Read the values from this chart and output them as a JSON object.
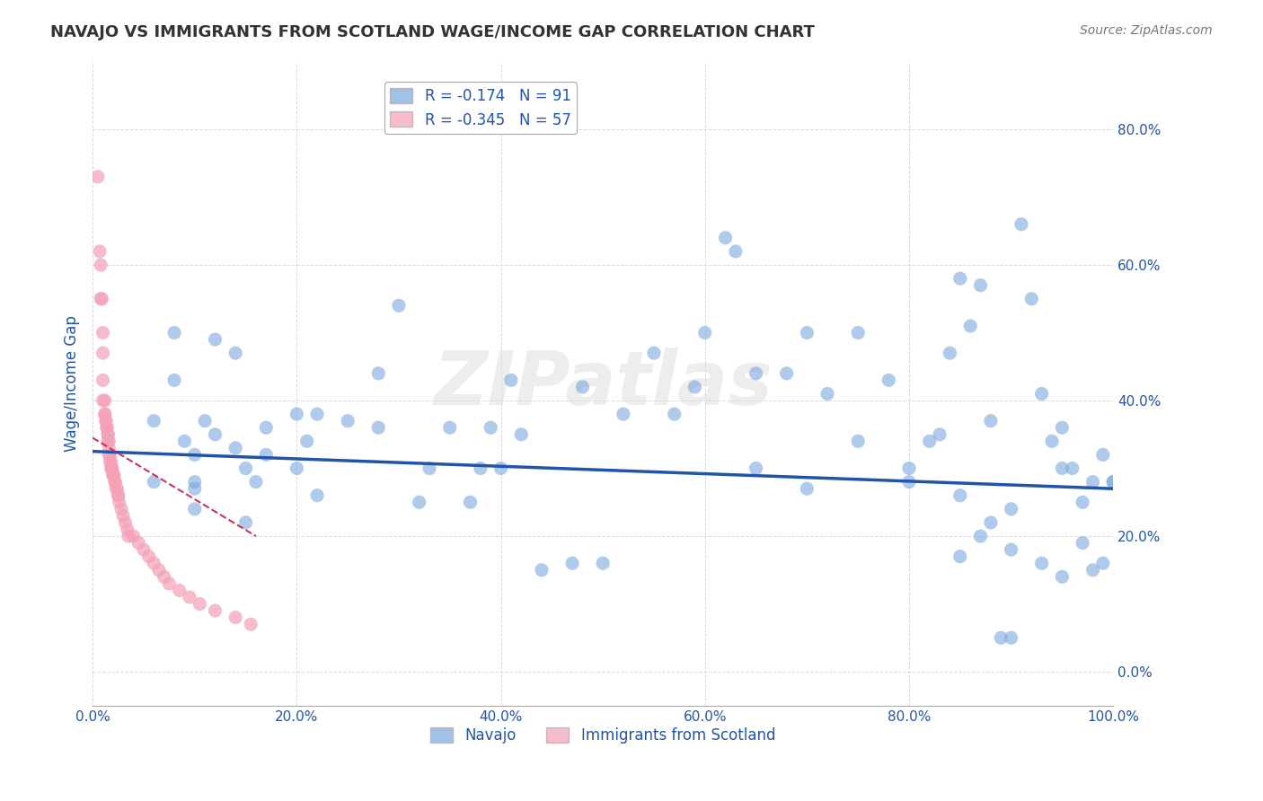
{
  "title": "NAVAJO VS IMMIGRANTS FROM SCOTLAND WAGE/INCOME GAP CORRELATION CHART",
  "source": "Source: ZipAtlas.com",
  "xlabel": "",
  "ylabel": "Wage/Income Gap",
  "watermark": "ZIPatlas",
  "legend_blue_r": "-0.174",
  "legend_blue_n": "91",
  "legend_pink_r": "-0.345",
  "legend_pink_n": "57",
  "legend_blue_label": "Navajo",
  "legend_pink_label": "Immigrants from Scotland",
  "xlim": [
    0.0,
    1.0
  ],
  "ylim": [
    -0.05,
    0.9
  ],
  "xticks": [
    0.0,
    0.2,
    0.4,
    0.6,
    0.8,
    1.0
  ],
  "yticks": [
    0.0,
    0.2,
    0.4,
    0.6,
    0.8
  ],
  "ytick_labels": [
    "0.0%",
    "20.0%",
    "40.0%",
    "60.0%",
    "80.0%"
  ],
  "xtick_labels": [
    "0.0%",
    "20.0%",
    "40.0%",
    "60.0%",
    "80.0%",
    "100.0%"
  ],
  "blue_x": [
    0.06,
    0.06,
    0.08,
    0.08,
    0.09,
    0.1,
    0.1,
    0.1,
    0.1,
    0.11,
    0.12,
    0.12,
    0.14,
    0.14,
    0.15,
    0.15,
    0.16,
    0.17,
    0.17,
    0.2,
    0.2,
    0.21,
    0.22,
    0.22,
    0.25,
    0.28,
    0.28,
    0.3,
    0.32,
    0.33,
    0.35,
    0.37,
    0.38,
    0.39,
    0.4,
    0.41,
    0.42,
    0.44,
    0.47,
    0.48,
    0.5,
    0.52,
    0.55,
    0.57,
    0.59,
    0.6,
    0.62,
    0.63,
    0.65,
    0.68,
    0.7,
    0.72,
    0.75,
    0.78,
    0.8,
    0.82,
    0.83,
    0.84,
    0.85,
    0.86,
    0.87,
    0.88,
    0.89,
    0.9,
    0.91,
    0.92,
    0.93,
    0.94,
    0.95,
    0.96,
    0.97,
    0.98,
    0.99,
    1.0,
    0.65,
    0.7,
    0.75,
    0.8,
    0.85,
    0.9,
    0.95,
    0.85,
    0.87,
    0.88,
    0.9,
    0.93,
    0.95,
    0.97,
    0.98,
    0.99,
    1.0
  ],
  "blue_y": [
    0.37,
    0.28,
    0.5,
    0.43,
    0.34,
    0.28,
    0.32,
    0.27,
    0.24,
    0.37,
    0.49,
    0.35,
    0.47,
    0.33,
    0.3,
    0.22,
    0.28,
    0.36,
    0.32,
    0.38,
    0.3,
    0.34,
    0.38,
    0.26,
    0.37,
    0.44,
    0.36,
    0.54,
    0.25,
    0.3,
    0.36,
    0.25,
    0.3,
    0.36,
    0.3,
    0.43,
    0.35,
    0.15,
    0.16,
    0.42,
    0.16,
    0.38,
    0.47,
    0.38,
    0.42,
    0.5,
    0.64,
    0.62,
    0.44,
    0.44,
    0.5,
    0.41,
    0.5,
    0.43,
    0.3,
    0.34,
    0.35,
    0.47,
    0.58,
    0.51,
    0.57,
    0.37,
    0.05,
    0.05,
    0.66,
    0.55,
    0.41,
    0.34,
    0.36,
    0.3,
    0.25,
    0.28,
    0.32,
    0.28,
    0.3,
    0.27,
    0.34,
    0.28,
    0.26,
    0.24,
    0.3,
    0.17,
    0.2,
    0.22,
    0.18,
    0.16,
    0.14,
    0.19,
    0.15,
    0.16,
    0.28
  ],
  "pink_x": [
    0.005,
    0.007,
    0.008,
    0.008,
    0.009,
    0.01,
    0.01,
    0.01,
    0.01,
    0.012,
    0.012,
    0.012,
    0.013,
    0.013,
    0.014,
    0.014,
    0.015,
    0.015,
    0.015,
    0.016,
    0.016,
    0.016,
    0.017,
    0.017,
    0.018,
    0.018,
    0.019,
    0.019,
    0.02,
    0.02,
    0.021,
    0.022,
    0.022,
    0.023,
    0.024,
    0.025,
    0.025,
    0.026,
    0.028,
    0.03,
    0.032,
    0.034,
    0.035,
    0.04,
    0.045,
    0.05,
    0.055,
    0.06,
    0.065,
    0.07,
    0.075,
    0.085,
    0.095,
    0.105,
    0.12,
    0.14,
    0.155
  ],
  "pink_y": [
    0.73,
    0.62,
    0.6,
    0.55,
    0.55,
    0.5,
    0.47,
    0.43,
    0.4,
    0.4,
    0.38,
    0.38,
    0.37,
    0.37,
    0.36,
    0.36,
    0.35,
    0.35,
    0.34,
    0.34,
    0.33,
    0.32,
    0.32,
    0.31,
    0.31,
    0.3,
    0.3,
    0.3,
    0.29,
    0.29,
    0.29,
    0.28,
    0.28,
    0.27,
    0.27,
    0.26,
    0.26,
    0.25,
    0.24,
    0.23,
    0.22,
    0.21,
    0.2,
    0.2,
    0.19,
    0.18,
    0.17,
    0.16,
    0.15,
    0.14,
    0.13,
    0.12,
    0.11,
    0.1,
    0.09,
    0.08,
    0.07
  ],
  "blue_line_x": [
    0.0,
    1.0
  ],
  "blue_line_y": [
    0.325,
    0.27
  ],
  "pink_line_x": [
    0.0,
    0.16
  ],
  "pink_line_y": [
    0.345,
    0.2
  ],
  "background_color": "#ffffff",
  "blue_color": "#7BA7DC",
  "pink_color": "#F4A0B5",
  "blue_line_color": "#2255AA",
  "pink_line_color": "#CC3355",
  "grid_color": "#CCCCCC",
  "title_color": "#333333",
  "axis_label_color": "#2255AA",
  "tick_color": "#2255AA",
  "watermark_color": "#DDDDDD"
}
